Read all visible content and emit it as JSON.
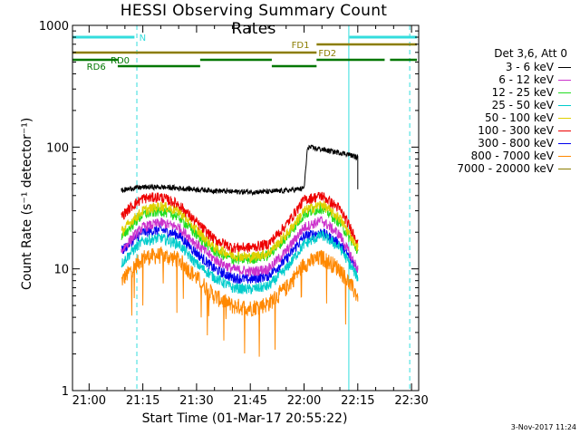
{
  "chart_data": {
    "type": "line",
    "title": "HESSI Observing Summary Count Rates",
    "xlabel": "Start Time (01-Mar-17 20:55:22)",
    "ylabel": "Count Rate (s⁻¹ detector⁻¹)",
    "y_scale": "log",
    "ylim": [
      1,
      1000
    ],
    "xlim": [
      "20:55:22",
      "22:32:00"
    ],
    "x_ticks": [
      "21:00",
      "21:15",
      "21:30",
      "21:45",
      "22:00",
      "22:15",
      "22:30"
    ],
    "y_ticks": [
      "1",
      "10",
      "100",
      "1000"
    ],
    "legend_header": "Det 3,6, Att 0",
    "legend_placement": "right",
    "series": [
      {
        "name": "3 - 6 keV",
        "color": "#000000",
        "x": [
          "21:09",
          "21:12",
          "21:16",
          "21:20",
          "21:25",
          "21:30",
          "21:35",
          "21:40",
          "21:45",
          "21:50",
          "21:55",
          "21:58",
          "22:00",
          "22:01",
          "22:04",
          "22:08",
          "22:12",
          "22:15",
          "22:15"
        ],
        "y": [
          44,
          46,
          47,
          47,
          46,
          45,
          44,
          43,
          43,
          43,
          44,
          45,
          46,
          100,
          97,
          92,
          88,
          82,
          45
        ]
      },
      {
        "name": "6 - 12 keV",
        "color": "#cc33cc",
        "x": [
          "21:09",
          "21:12",
          "21:15",
          "21:20",
          "21:25",
          "21:30",
          "21:35",
          "21:40",
          "21:45",
          "21:50",
          "21:55",
          "22:00",
          "22:05",
          "22:10",
          "22:15"
        ],
        "y": [
          14,
          18,
          22,
          24,
          22,
          16,
          12,
          10,
          9.5,
          10,
          14,
          22,
          25,
          19,
          10
        ]
      },
      {
        "name": "12 - 25 keV",
        "color": "#22dd22",
        "x": [
          "21:09",
          "21:12",
          "21:15",
          "21:20",
          "21:25",
          "21:30",
          "21:35",
          "21:40",
          "21:45",
          "21:50",
          "21:55",
          "22:00",
          "22:05",
          "22:10",
          "22:15"
        ],
        "y": [
          18,
          23,
          28,
          30,
          27,
          19,
          14,
          12,
          12,
          13,
          18,
          28,
          32,
          24,
          14
        ]
      },
      {
        "name": "25 - 50 keV",
        "color": "#00cccc",
        "x": [
          "21:09",
          "21:12",
          "21:15",
          "21:20",
          "21:25",
          "21:30",
          "21:35",
          "21:40",
          "21:45",
          "21:50",
          "21:55",
          "22:00",
          "22:05",
          "22:10",
          "22:15"
        ],
        "y": [
          11,
          14,
          17,
          18,
          16,
          11,
          8.5,
          7,
          6.8,
          7.2,
          10,
          16,
          19,
          15,
          8.5
        ]
      },
      {
        "name": "50 - 100 keV",
        "color": "#e0d000",
        "x": [
          "21:09",
          "21:12",
          "21:15",
          "21:20",
          "21:25",
          "21:30",
          "21:35",
          "21:40",
          "21:45",
          "21:50",
          "21:55",
          "22:00",
          "22:05",
          "22:10",
          "22:15"
        ],
        "y": [
          20,
          25,
          30,
          33,
          30,
          21,
          15,
          13,
          12.5,
          13.5,
          19,
          30,
          34,
          26,
          15
        ]
      },
      {
        "name": "100 - 300 keV",
        "color": "#ee0000",
        "x": [
          "21:09",
          "21:12",
          "21:15",
          "21:20",
          "21:25",
          "21:30",
          "21:35",
          "21:40",
          "21:45",
          "21:50",
          "21:55",
          "22:00",
          "22:05",
          "22:10",
          "22:15"
        ],
        "y": [
          27,
          33,
          38,
          39,
          34,
          24,
          17.5,
          15,
          15,
          16,
          23,
          37,
          40,
          31,
          17
        ]
      },
      {
        "name": "300 - 800 keV",
        "color": "#0000ee",
        "x": [
          "21:09",
          "21:12",
          "21:15",
          "21:20",
          "21:25",
          "21:30",
          "21:35",
          "21:40",
          "21:45",
          "21:50",
          "21:55",
          "22:00",
          "22:05",
          "22:10",
          "22:15"
        ],
        "y": [
          14,
          17,
          20,
          21,
          19,
          13.5,
          10,
          8.5,
          8.2,
          8.8,
          12,
          18.5,
          20,
          16,
          10
        ]
      },
      {
        "name": "800 - 7000 keV",
        "color": "#ff8800",
        "x": [
          "21:09",
          "21:12",
          "21:15",
          "21:20",
          "21:25",
          "21:30",
          "21:35",
          "21:40",
          "21:45",
          "21:50",
          "21:55",
          "22:00",
          "22:05",
          "22:10",
          "22:15"
        ],
        "y": [
          8,
          10,
          12.5,
          13,
          12,
          8.5,
          6,
          5,
          4.8,
          5.2,
          7,
          11,
          12.5,
          10,
          6
        ]
      },
      {
        "name": "7000 - 20000 keV",
        "color": "#8b7d00",
        "x": [],
        "y": []
      }
    ],
    "vertical_markers": [
      {
        "time": "20:55:22",
        "color": "#33dddd",
        "style": "solid"
      },
      {
        "time": "21:13:20",
        "color": "#33dddd",
        "style": "dashed"
      },
      {
        "time": "22:12:30",
        "color": "#33dddd",
        "style": "solid"
      },
      {
        "time": "22:29:30",
        "color": "#33dddd",
        "style": "dashed"
      }
    ],
    "flag_bars": [
      {
        "label": "N",
        "color": "#33dddd",
        "segments": [
          [
            "20:55:22",
            "21:12:40"
          ],
          [
            "22:12:40",
            "22:31:30"
          ]
        ]
      },
      {
        "label": "FD1",
        "color": "#8b7d00",
        "segments": [
          [
            "22:03:30",
            "22:31:30"
          ]
        ]
      },
      {
        "label": "FD2",
        "color": "#8b7d00",
        "segments": [
          [
            "20:55:22",
            "22:03:30"
          ]
        ]
      },
      {
        "label": "RD0",
        "color": "#007700",
        "segments": [
          [
            "20:55:22",
            "21:08:00"
          ],
          [
            "21:31:00",
            "21:51:00"
          ],
          [
            "22:03:30",
            "22:22:30"
          ],
          [
            "22:24:00",
            "22:31:30"
          ]
        ]
      },
      {
        "label": "RD6",
        "color": "#007700",
        "segments": [
          [
            "21:08:00",
            "21:31:00"
          ],
          [
            "21:51:00",
            "22:03:30"
          ]
        ]
      }
    ]
  },
  "timestamp": "3-Nov-2017 11:24"
}
